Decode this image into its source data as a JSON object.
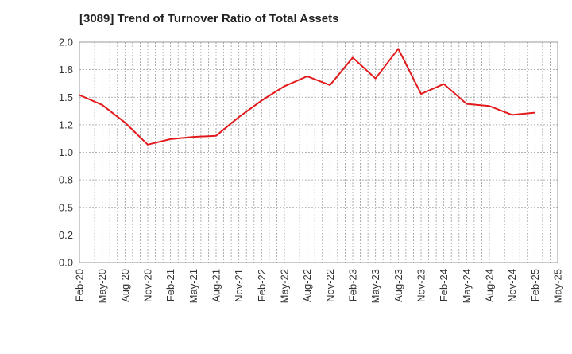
{
  "chart_data": {
    "type": "line",
    "title": "[3089]  Trend of Turnover Ratio of Total Assets",
    "xlabel": "",
    "ylabel": "",
    "ylim": [
      0.0,
      2.0
    ],
    "y_ticks": [
      "0.0",
      "0.2",
      "0.5",
      "0.8",
      "1.0",
      "1.2",
      "1.5",
      "1.8",
      "2.0"
    ],
    "x_ticks": [
      "Feb-20",
      "May-20",
      "Aug-20",
      "Nov-20",
      "Feb-21",
      "May-21",
      "Aug-21",
      "Nov-21",
      "Feb-22",
      "May-22",
      "Aug-22",
      "Nov-22",
      "Feb-23",
      "May-23",
      "Aug-23",
      "Nov-23",
      "Feb-24",
      "May-24",
      "Aug-24",
      "Nov-24",
      "Feb-25",
      "May-25"
    ],
    "grid": true,
    "legend": "none",
    "series": [
      {
        "color": "#e31a1c",
        "x": [
          "Feb-20",
          "May-20",
          "Aug-20",
          "Nov-20",
          "Feb-21",
          "May-21",
          "Aug-21",
          "Nov-21",
          "Feb-22",
          "May-22",
          "Aug-22",
          "Nov-22",
          "Feb-23",
          "May-23",
          "Aug-23",
          "Nov-23",
          "Feb-24",
          "May-24",
          "Aug-24",
          "Nov-24",
          "Feb-25"
        ],
        "values": [
          1.52,
          1.43,
          1.27,
          1.07,
          1.12,
          1.14,
          1.15,
          1.32,
          1.47,
          1.6,
          1.69,
          1.61,
          1.86,
          1.67,
          1.94,
          1.53,
          1.62,
          1.44,
          1.42,
          1.34,
          1.36
        ]
      }
    ]
  }
}
